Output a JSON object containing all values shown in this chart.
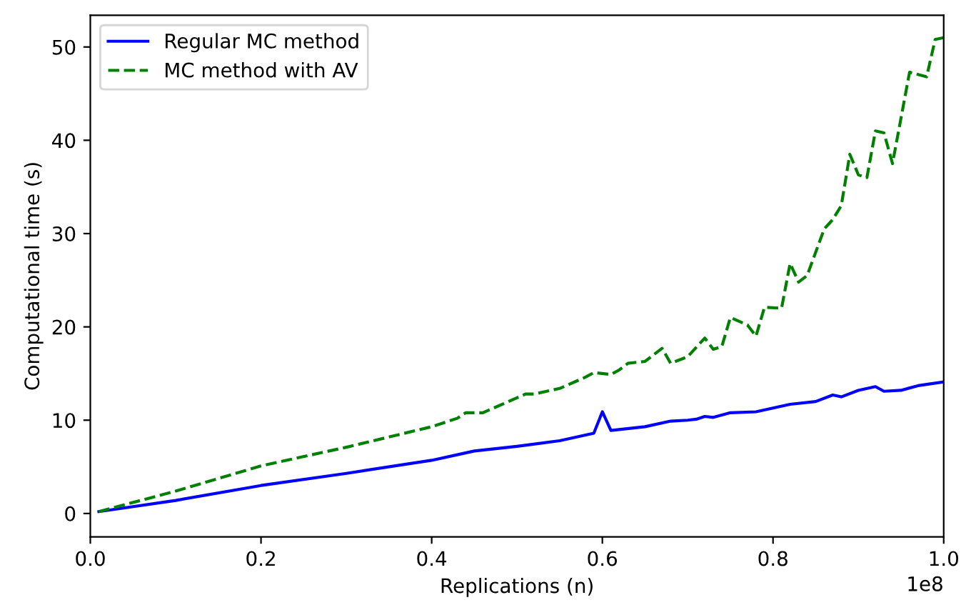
{
  "chart_data": {
    "type": "line",
    "xlabel": "Replications (n)",
    "ylabel": "Computational time (s)",
    "annotations": [
      "1e8"
    ],
    "xlim": [
      0.0,
      1.0
    ],
    "xticks": [
      {
        "value": 0,
        "label": "0.0"
      },
      0.2,
      0.4,
      0.6,
      0.8,
      {
        "value": 1,
        "label": "1.0"
      }
    ],
    "ylim": [
      -2.5,
      53.4
    ],
    "yticks": [
      0,
      10,
      20,
      30,
      40,
      50
    ],
    "grid": false,
    "legend": "top left",
    "series": [
      {
        "name": "Regular MC method",
        "color": "#0000ff",
        "line_style": "solid",
        "x": [
          0.01,
          0.1,
          0.2,
          0.3,
          0.4,
          0.45,
          0.5,
          0.55,
          0.59,
          0.6,
          0.61,
          0.65,
          0.68,
          0.7,
          0.71,
          0.72,
          0.73,
          0.75,
          0.78,
          0.8,
          0.82,
          0.85,
          0.87,
          0.88,
          0.9,
          0.92,
          0.93,
          0.95,
          0.97,
          1.0
        ],
        "values": [
          0.2,
          1.4,
          3.0,
          4.3,
          5.7,
          6.7,
          7.2,
          7.8,
          8.6,
          10.9,
          8.9,
          9.3,
          9.9,
          10.0,
          10.1,
          10.4,
          10.3,
          10.8,
          10.9,
          11.3,
          11.7,
          12.0,
          12.7,
          12.5,
          13.2,
          13.6,
          13.1,
          13.2,
          13.7,
          14.1
        ]
      },
      {
        "name": "MC method with AV",
        "color": "#008000",
        "line_style": "dashed",
        "x": [
          0.01,
          0.1,
          0.2,
          0.3,
          0.4,
          0.43,
          0.44,
          0.46,
          0.5,
          0.51,
          0.52,
          0.55,
          0.58,
          0.59,
          0.61,
          0.62,
          0.63,
          0.65,
          0.67,
          0.68,
          0.7,
          0.72,
          0.73,
          0.74,
          0.75,
          0.77,
          0.78,
          0.79,
          0.81,
          0.82,
          0.83,
          0.84,
          0.86,
          0.87,
          0.88,
          0.89,
          0.9,
          0.91,
          0.92,
          0.93,
          0.94,
          0.96,
          0.98,
          0.99,
          1.0
        ],
        "values": [
          0.2,
          2.4,
          5.1,
          7.1,
          9.3,
          10.2,
          10.8,
          10.8,
          12.4,
          12.8,
          12.8,
          13.4,
          14.6,
          15.1,
          14.9,
          15.4,
          16.1,
          16.3,
          17.7,
          16.1,
          16.8,
          18.8,
          17.6,
          17.9,
          21.0,
          20.2,
          19.0,
          22.1,
          22.0,
          26.8,
          24.8,
          25.5,
          30.5,
          31.5,
          33.0,
          38.5,
          36.3,
          36.0,
          41.0,
          40.8,
          37.5,
          47.3,
          46.8,
          50.8,
          51.0
        ]
      }
    ]
  }
}
